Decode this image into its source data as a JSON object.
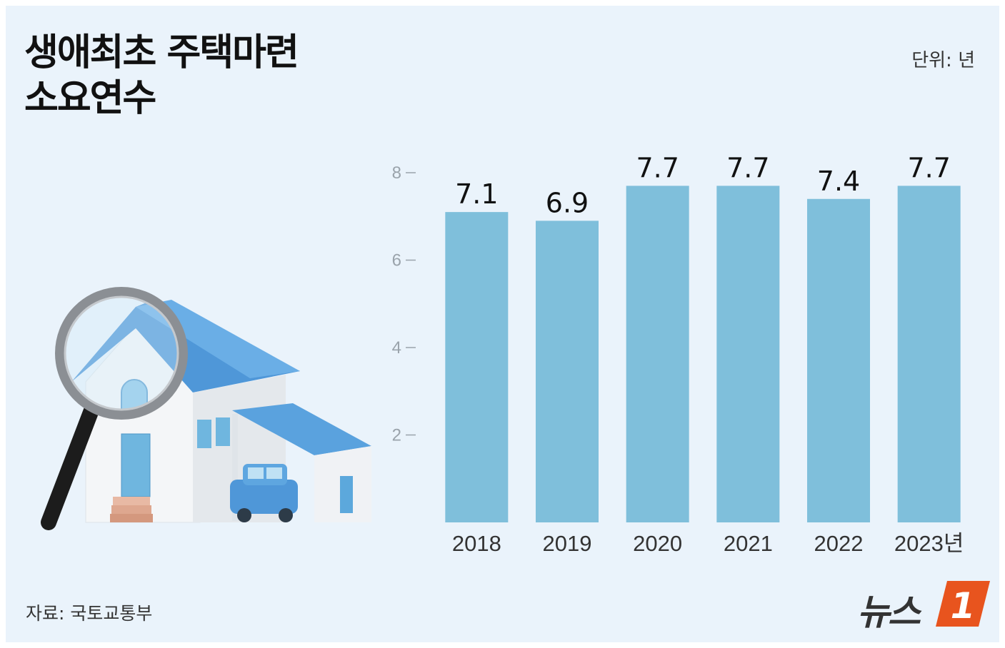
{
  "title": {
    "line1": "생애최초 주택마련",
    "line2": "소요연수"
  },
  "unit_label": "단위: 년",
  "source": "자료: 국토교통부",
  "logo": {
    "text": "뉴스",
    "mark": "1"
  },
  "colors": {
    "bar": "#7fbfdb",
    "background": "#eaf3fb",
    "logo_accent": "#e8541e"
  },
  "chart_data": {
    "type": "bar",
    "categories": [
      "2018",
      "2019",
      "2020",
      "2021",
      "2022",
      "2023년"
    ],
    "values": [
      7.1,
      6.9,
      7.7,
      7.7,
      7.4,
      7.7
    ],
    "data_labels": [
      "7.1",
      "6.9",
      "7.7",
      "7.7",
      "7.4",
      "7.7"
    ],
    "yticks": [
      "2",
      "4",
      "6",
      "8"
    ],
    "ylim": [
      0,
      8
    ],
    "grid": false,
    "legend": "none"
  }
}
